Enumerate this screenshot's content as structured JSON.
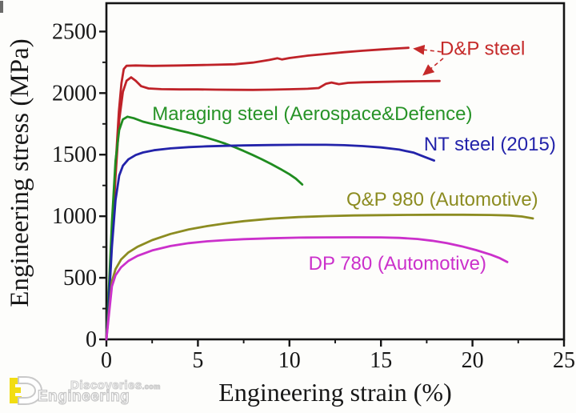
{
  "watermark": {
    "line1": "Discoveries",
    "line1_suffix": ".com",
    "line2": "Engineering",
    "logo": {
      "letter_e_color": "#f2dd12",
      "letter_d_color": "#ffffff",
      "outline_color": "#c9c9c9"
    }
  },
  "chart_data": {
    "type": "line",
    "title": "",
    "xlabel": "Engineering strain (%)",
    "ylabel": "Engineering stress (MPa)",
    "xlim": [
      0,
      25
    ],
    "ylim": [
      0,
      2730
    ],
    "x_major_ticks": [
      0,
      5,
      10,
      15,
      20,
      25
    ],
    "x_minor_ticks": [
      2.5,
      7.5,
      12.5,
      17.5,
      22.5
    ],
    "y_major_ticks": [
      0,
      500,
      1000,
      1500,
      2000,
      2500
    ],
    "y_minor_ticks": [
      250,
      750,
      1250,
      1750,
      2250
    ],
    "grid": false,
    "legend_position": "inline-labels",
    "axis_color": "#141414",
    "series": [
      {
        "name": "D&P steel (upper curve)",
        "slug": "dp-steel-upper",
        "color": "#bf2228",
        "points": [
          [
            0,
            0
          ],
          [
            0.12,
            300
          ],
          [
            0.3,
            850
          ],
          [
            0.5,
            1400
          ],
          [
            0.68,
            1850
          ],
          [
            0.82,
            2080
          ],
          [
            0.95,
            2195
          ],
          [
            1.1,
            2222
          ],
          [
            1.6,
            2224
          ],
          [
            2.5,
            2221
          ],
          [
            4,
            2224
          ],
          [
            5.5,
            2229
          ],
          [
            7,
            2234
          ],
          [
            8,
            2248
          ],
          [
            8.9,
            2269
          ],
          [
            9.35,
            2283
          ],
          [
            9.6,
            2273
          ],
          [
            10,
            2285
          ],
          [
            11,
            2304
          ],
          [
            12,
            2318
          ],
          [
            13,
            2332
          ],
          [
            14,
            2344
          ],
          [
            15,
            2354
          ],
          [
            15.9,
            2363
          ],
          [
            16.5,
            2368
          ]
        ]
      },
      {
        "name": "D&P steel (lower curve)",
        "slug": "dp-steel-lower",
        "color": "#bf2228",
        "points": [
          [
            0,
            0
          ],
          [
            0.12,
            280
          ],
          [
            0.3,
            800
          ],
          [
            0.5,
            1320
          ],
          [
            0.7,
            1780
          ],
          [
            0.9,
            2010
          ],
          [
            1.1,
            2100
          ],
          [
            1.35,
            2128
          ],
          [
            1.6,
            2100
          ],
          [
            1.9,
            2056
          ],
          [
            2.3,
            2038
          ],
          [
            3,
            2032
          ],
          [
            4,
            2030
          ],
          [
            5,
            2030
          ],
          [
            6,
            2028
          ],
          [
            7,
            2027
          ],
          [
            8,
            2026
          ],
          [
            9,
            2028
          ],
          [
            10,
            2031
          ],
          [
            11,
            2035
          ],
          [
            11.6,
            2041
          ],
          [
            12,
            2076
          ],
          [
            12.3,
            2086
          ],
          [
            12.7,
            2073
          ],
          [
            13.2,
            2083
          ],
          [
            14,
            2088
          ],
          [
            15,
            2091
          ],
          [
            16,
            2094
          ],
          [
            17,
            2096
          ],
          [
            18.2,
            2098
          ]
        ]
      },
      {
        "name": "Maraging steel (Aerospace&Defence)",
        "slug": "maraging-steel",
        "color": "#1f8c1f",
        "points": [
          [
            0,
            0
          ],
          [
            0.12,
            350
          ],
          [
            0.3,
            950
          ],
          [
            0.5,
            1450
          ],
          [
            0.7,
            1700
          ],
          [
            0.9,
            1786
          ],
          [
            1.15,
            1808
          ],
          [
            1.5,
            1796
          ],
          [
            2,
            1768
          ],
          [
            2.5,
            1750
          ],
          [
            3,
            1732
          ],
          [
            3.5,
            1714
          ],
          [
            4,
            1696
          ],
          [
            4.5,
            1678
          ],
          [
            5,
            1658
          ],
          [
            5.5,
            1637
          ],
          [
            6,
            1614
          ],
          [
            6.5,
            1589
          ],
          [
            7,
            1561
          ],
          [
            7.5,
            1530
          ],
          [
            8,
            1497
          ],
          [
            8.5,
            1462
          ],
          [
            9,
            1424
          ],
          [
            9.5,
            1384
          ],
          [
            10,
            1341
          ],
          [
            10.35,
            1305
          ],
          [
            10.7,
            1258
          ]
        ]
      },
      {
        "name": "NT steel (2015)",
        "slug": "nt-steel",
        "color": "#2323aa",
        "points": [
          [
            0,
            0
          ],
          [
            0.12,
            260
          ],
          [
            0.3,
            750
          ],
          [
            0.5,
            1130
          ],
          [
            0.7,
            1330
          ],
          [
            0.9,
            1410
          ],
          [
            1.2,
            1462
          ],
          [
            1.6,
            1497
          ],
          [
            2,
            1518
          ],
          [
            2.6,
            1536
          ],
          [
            3.5,
            1551
          ],
          [
            4.5,
            1561
          ],
          [
            5.5,
            1568
          ],
          [
            6.5,
            1572
          ],
          [
            7.5,
            1575
          ],
          [
            9,
            1578
          ],
          [
            10.5,
            1580
          ],
          [
            12,
            1580
          ],
          [
            13,
            1577
          ],
          [
            14,
            1570
          ],
          [
            15,
            1559
          ],
          [
            16,
            1541
          ],
          [
            16.8,
            1516
          ],
          [
            17.4,
            1481
          ],
          [
            17.9,
            1452
          ]
        ]
      },
      {
        "name": "Q&P 980 (Automotive)",
        "slug": "qp-980",
        "color": "#8c8c21",
        "points": [
          [
            0,
            0
          ],
          [
            0.12,
            200
          ],
          [
            0.3,
            470
          ],
          [
            0.5,
            570
          ],
          [
            0.8,
            648
          ],
          [
            1.2,
            706
          ],
          [
            1.7,
            752
          ],
          [
            2.5,
            806
          ],
          [
            3.5,
            856
          ],
          [
            4.5,
            893
          ],
          [
            5.5,
            920
          ],
          [
            6.5,
            942
          ],
          [
            7.5,
            960
          ],
          [
            9,
            980
          ],
          [
            10.5,
            993
          ],
          [
            12,
            1001
          ],
          [
            13.5,
            1006
          ],
          [
            15,
            1009
          ],
          [
            16.5,
            1011
          ],
          [
            18,
            1012
          ],
          [
            19.5,
            1012
          ],
          [
            21,
            1010
          ],
          [
            22,
            1006
          ],
          [
            22.7,
            998
          ],
          [
            23.3,
            982
          ]
        ]
      },
      {
        "name": "DP 780 (Automotive)",
        "slug": "dp-780",
        "color": "#cb30cb",
        "points": [
          [
            0,
            0
          ],
          [
            0.12,
            170
          ],
          [
            0.3,
            430
          ],
          [
            0.5,
            520
          ],
          [
            0.8,
            585
          ],
          [
            1.2,
            637
          ],
          [
            1.7,
            678
          ],
          [
            2.5,
            722
          ],
          [
            3.5,
            758
          ],
          [
            4.5,
            781
          ],
          [
            5.5,
            796
          ],
          [
            6.5,
            806
          ],
          [
            7.5,
            814
          ],
          [
            9,
            821
          ],
          [
            10.5,
            826
          ],
          [
            12,
            828
          ],
          [
            13.5,
            829
          ],
          [
            15,
            828
          ],
          [
            16,
            824
          ],
          [
            17,
            815
          ],
          [
            17.8,
            801
          ],
          [
            18.6,
            781
          ],
          [
            19.4,
            756
          ],
          [
            20.2,
            725
          ],
          [
            21,
            688
          ],
          [
            21.5,
            659
          ],
          [
            21.9,
            628
          ]
        ]
      }
    ],
    "labels": [
      {
        "slug": "label-dp-steel",
        "text": "D&P steel",
        "color": "#c52a2a",
        "x": 20.55,
        "y": 2312,
        "size": 24
      },
      {
        "slug": "label-maraging-steel",
        "text": "Maraging steel (Aerospace&Defence)",
        "color": "#279327",
        "x": 11.25,
        "y": 1781,
        "size": 24
      },
      {
        "slug": "label-nt-steel",
        "text": "NT steel (2015)",
        "color": "#2323aa",
        "x": 20.95,
        "y": 1534,
        "size": 24
      },
      {
        "slug": "label-qp-980",
        "text": "Q&P 980 (Automotive)",
        "color": "#8c8c21",
        "x": 18.35,
        "y": 1085,
        "size": 24
      },
      {
        "slug": "label-dp-780",
        "text": "DP 780 (Automotive)",
        "color": "#cb30cb",
        "x": 15.9,
        "y": 566,
        "size": 24
      }
    ],
    "arrows": [
      {
        "slug": "arrow-dp-upper",
        "color": "#c52a2a",
        "from": [
          18.3,
          2335
        ],
        "to": [
          16.85,
          2360
        ],
        "dashed": true
      },
      {
        "slug": "arrow-dp-lower",
        "color": "#c52a2a",
        "from": [
          18.4,
          2282
        ],
        "to": [
          17.35,
          2152
        ],
        "dashed": true
      }
    ]
  }
}
